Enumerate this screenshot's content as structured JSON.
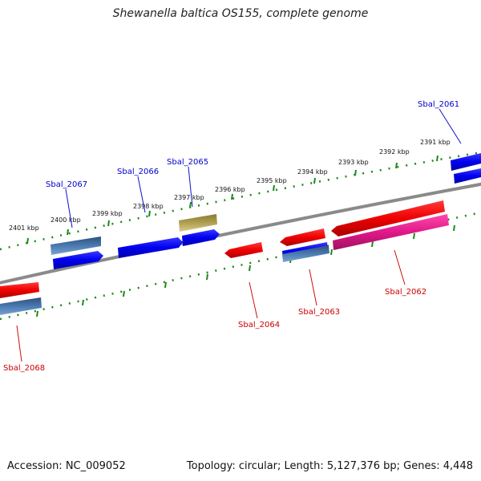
{
  "title": "Shewanella baltica OS155, complete genome",
  "footer": {
    "accession": "Accession: NC_009052",
    "summary": "Topology: circular; Length: 5,127,376 bp; Genes: 4,448"
  },
  "ticks": [
    {
      "label": "2401 kbp"
    },
    {
      "label": "2400 kbp"
    },
    {
      "label": "2399 kbp"
    },
    {
      "label": "2398 kbp"
    },
    {
      "label": "2397 kbp"
    },
    {
      "label": "2396 kbp"
    },
    {
      "label": "2395 kbp"
    },
    {
      "label": "2394 kbp"
    },
    {
      "label": "2393 kbp"
    },
    {
      "label": "2392 kbp"
    },
    {
      "label": "2391 kbp"
    }
  ],
  "genes": {
    "forward": [
      {
        "label": "Sbal_2061",
        "color": "#0000cc"
      },
      {
        "label": "Sbal_2065",
        "color": "#0000cc"
      },
      {
        "label": "Sbal_2066",
        "color": "#0000cc"
      },
      {
        "label": "Sbal_2067",
        "color": "#0000cc"
      }
    ],
    "reverse": [
      {
        "label": "Sbal_2062",
        "color": "#cc0000"
      },
      {
        "label": "Sbal_2063",
        "color": "#cc0000"
      },
      {
        "label": "Sbal_2064",
        "color": "#cc0000"
      },
      {
        "label": "Sbal_2068",
        "color": "#cc0000"
      }
    ]
  },
  "colors": {
    "backbone": "#8a8a8a",
    "tick": "#1a8a1a",
    "forward_cds": "#0000ee",
    "reverse_cds": "#ee0000",
    "pink_cds": "#e0188a",
    "steel_cds": "#4a7ab0",
    "olive_cds": "#b0a050"
  }
}
